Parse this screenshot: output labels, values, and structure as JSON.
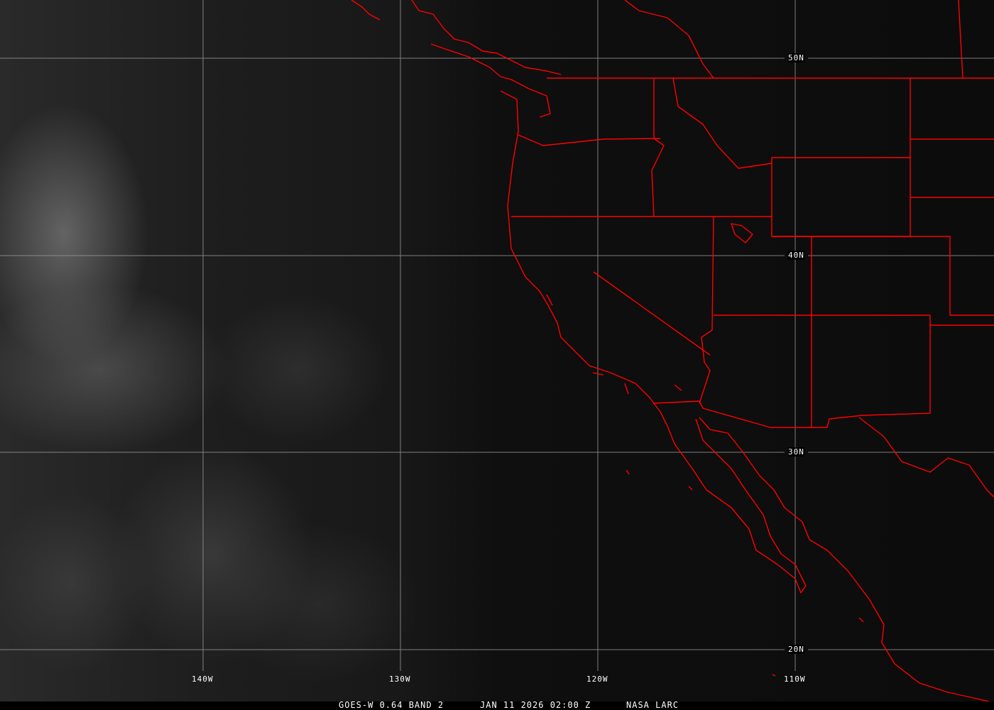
{
  "caption": {
    "product": "GOES-W 0.64 BAND 2",
    "datetime": "JAN 11 2026 02:00 Z",
    "credit": "NASA LARC"
  },
  "grid": {
    "latitudes": [
      "50N",
      "40N",
      "30N",
      "20N"
    ],
    "longitudes": [
      "140W",
      "130W",
      "120W",
      "110W"
    ]
  },
  "colors": {
    "boundaries": "#ff0000",
    "grid": "#9a9a9a",
    "labels": "#ffffff"
  }
}
